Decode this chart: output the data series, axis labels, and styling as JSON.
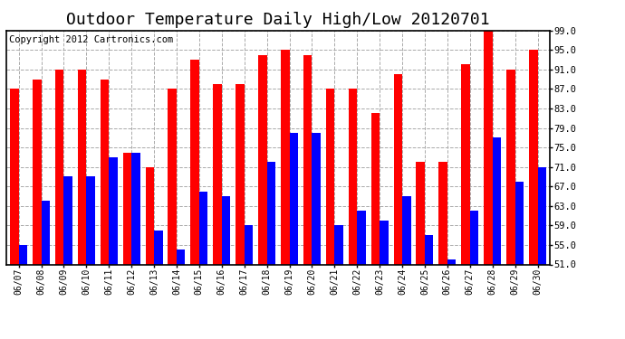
{
  "title": "Outdoor Temperature Daily High/Low 20120701",
  "copyright": "Copyright 2012 Cartronics.com",
  "dates": [
    "06/07",
    "06/08",
    "06/09",
    "06/10",
    "06/11",
    "06/12",
    "06/13",
    "06/14",
    "06/15",
    "06/16",
    "06/17",
    "06/18",
    "06/19",
    "06/20",
    "06/21",
    "06/22",
    "06/23",
    "06/24",
    "06/25",
    "06/26",
    "06/27",
    "06/28",
    "06/29",
    "06/30"
  ],
  "highs": [
    87,
    89,
    91,
    91,
    89,
    74,
    71,
    87,
    93,
    88,
    88,
    94,
    95,
    94,
    87,
    87,
    82,
    90,
    72,
    72,
    92,
    99,
    91,
    95
  ],
  "lows": [
    55,
    64,
    69,
    69,
    73,
    74,
    58,
    54,
    66,
    65,
    59,
    72,
    78,
    78,
    59,
    62,
    60,
    65,
    57,
    52,
    62,
    77,
    68,
    71
  ],
  "bar_high_color": "#ff0000",
  "bar_low_color": "#0000ff",
  "background_color": "#ffffff",
  "plot_bg_color": "#ffffff",
  "grid_color": "#aaaaaa",
  "title_fontsize": 13,
  "copyright_fontsize": 7.5,
  "ymin": 51.0,
  "ymax": 99.0,
  "yticks": [
    51.0,
    55.0,
    59.0,
    63.0,
    67.0,
    71.0,
    75.0,
    79.0,
    83.0,
    87.0,
    91.0,
    95.0,
    99.0
  ]
}
